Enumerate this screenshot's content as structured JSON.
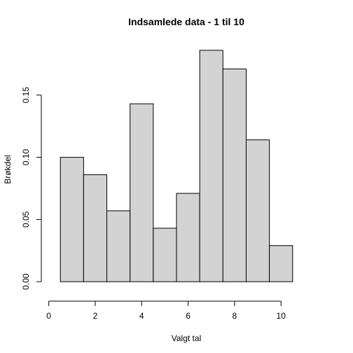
{
  "chart_data": {
    "type": "bar",
    "title": "Indsamlede data - 1 til 10",
    "xlabel": "Valgt tal",
    "ylabel": "Brøkdel",
    "bins": [
      {
        "x0": 0.5,
        "x1": 1.5,
        "value": 0.1
      },
      {
        "x0": 1.5,
        "x1": 2.5,
        "value": 0.086
      },
      {
        "x0": 2.5,
        "x1": 3.5,
        "value": 0.057
      },
      {
        "x0": 3.5,
        "x1": 4.5,
        "value": 0.143
      },
      {
        "x0": 4.5,
        "x1": 5.5,
        "value": 0.043
      },
      {
        "x0": 5.5,
        "x1": 6.5,
        "value": 0.071
      },
      {
        "x0": 6.5,
        "x1": 7.5,
        "value": 0.186
      },
      {
        "x0": 7.5,
        "x1": 8.5,
        "value": 0.171
      },
      {
        "x0": 8.5,
        "x1": 9.5,
        "value": 0.114
      },
      {
        "x0": 9.5,
        "x1": 10.5,
        "value": 0.029
      }
    ],
    "xlim": [
      0.5,
      10.5
    ],
    "ylim": [
      0,
      0.186
    ],
    "x_ticks": [
      0,
      2,
      4,
      6,
      8,
      10
    ],
    "x_tick_labels": [
      "0",
      "2",
      "4",
      "6",
      "8",
      "10"
    ],
    "y_ticks": [
      0,
      0.05,
      0.1,
      0.15
    ],
    "y_tick_labels": [
      "0.00",
      "0.05",
      "0.10",
      "0.15"
    ],
    "grid": false,
    "colors": {
      "bar_fill": "#d3d3d3",
      "bar_stroke": "#000000"
    }
  }
}
